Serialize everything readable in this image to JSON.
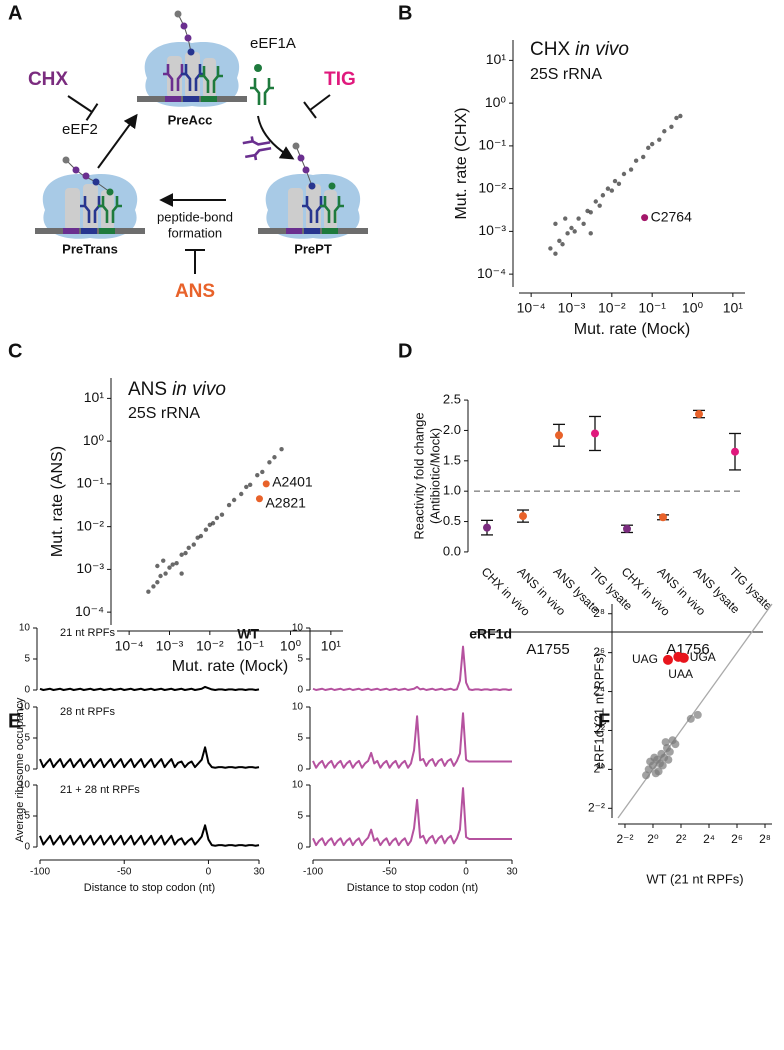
{
  "panel_labels": [
    "A",
    "B",
    "C",
    "D",
    "E",
    "F"
  ],
  "diagram": {
    "inhibitors": [
      "CHX",
      "TIG",
      "ANS"
    ],
    "factors": [
      "eEF1A",
      "eEF2"
    ],
    "states": [
      "PreAcc",
      "PreTrans",
      "PrePT"
    ],
    "step": [
      "peptide-bond",
      "formation"
    ]
  },
  "chart_data": [
    {
      "type": "scatter",
      "title": [
        "CHX",
        "in vivo"
      ],
      "subtitle": "25S rRNA",
      "xlabel": "Mut. rate (Mock)",
      "ylabel": "Mut. rate (CHX)",
      "xscale": "log",
      "yscale": "log",
      "xlim": [
        5e-05,
        20
      ],
      "ylim": [
        5e-05,
        30
      ],
      "xticks": [
        {
          "value": 0.0001,
          "label": "10⁻⁴"
        },
        {
          "value": 0.001,
          "label": "10⁻³"
        },
        {
          "value": 0.01,
          "label": "10⁻²"
        },
        {
          "value": 0.1,
          "label": "10⁻¹"
        },
        {
          "value": 1,
          "label": "10⁰"
        },
        {
          "value": 10,
          "label": "10¹"
        }
      ],
      "yticks": [
        {
          "value": 0.0001,
          "label": "10⁻⁴"
        },
        {
          "value": 0.001,
          "label": "10⁻³"
        },
        {
          "value": 0.01,
          "label": "10⁻²"
        },
        {
          "value": 0.1,
          "label": "10⁻¹"
        },
        {
          "value": 1,
          "label": "10⁰"
        },
        {
          "value": 10,
          "label": "10¹"
        }
      ],
      "series": [
        {
          "color": "#2a2a2a",
          "x": [
            0.0003,
            0.0004,
            0.0005,
            0.0006,
            0.0008,
            0.001,
            0.0012,
            0.0015,
            0.002,
            0.0025,
            0.003,
            0.004,
            0.005,
            0.006,
            0.008,
            0.01,
            0.012,
            0.015,
            0.02,
            0.03,
            0.04,
            0.06,
            0.08,
            0.1,
            0.15,
            0.2,
            0.3,
            0.4,
            0.5,
            0.0007,
            0.003,
            0.0004
          ],
          "y": [
            0.0004,
            0.0003,
            0.0006,
            0.0005,
            0.0009,
            0.0012,
            0.001,
            0.002,
            0.0015,
            0.003,
            0.0028,
            0.005,
            0.004,
            0.007,
            0.01,
            0.009,
            0.015,
            0.013,
            0.022,
            0.028,
            0.045,
            0.055,
            0.09,
            0.11,
            0.14,
            0.22,
            0.28,
            0.45,
            0.5,
            0.002,
            0.0009,
            0.0015
          ]
        },
        {
          "color": "#a3176a",
          "x": [
            0.065
          ],
          "y": [
            0.0021
          ],
          "labels": [
            "C2764"
          ]
        }
      ]
    },
    {
      "type": "scatter",
      "title": [
        "ANS",
        "in vivo"
      ],
      "subtitle": "25S rRNA",
      "xlabel": "Mut. rate (Mock)",
      "ylabel": "Mut. rate (ANS)",
      "xscale": "log",
      "yscale": "log",
      "xlim": [
        5e-05,
        20
      ],
      "ylim": [
        5e-05,
        30
      ],
      "xticks": [
        {
          "value": 0.0001,
          "label": "10⁻⁴"
        },
        {
          "value": 0.001,
          "label": "10⁻³"
        },
        {
          "value": 0.01,
          "label": "10⁻²"
        },
        {
          "value": 0.1,
          "label": "10⁻¹"
        },
        {
          "value": 1,
          "label": "10⁰"
        },
        {
          "value": 10,
          "label": "10¹"
        }
      ],
      "yticks": [
        {
          "value": 0.0001,
          "label": "10⁻⁴"
        },
        {
          "value": 0.001,
          "label": "10⁻³"
        },
        {
          "value": 0.01,
          "label": "10⁻²"
        },
        {
          "value": 0.1,
          "label": "10⁻¹"
        },
        {
          "value": 1,
          "label": "10⁰"
        },
        {
          "value": 10,
          "label": "10¹"
        }
      ],
      "series": [
        {
          "color": "#2a2a2a",
          "x": [
            0.0003,
            0.0004,
            0.0005,
            0.0006,
            0.0008,
            0.001,
            0.0012,
            0.0015,
            0.002,
            0.0025,
            0.003,
            0.004,
            0.005,
            0.006,
            0.008,
            0.01,
            0.012,
            0.015,
            0.02,
            0.03,
            0.04,
            0.06,
            0.08,
            0.1,
            0.15,
            0.2,
            0.3,
            0.4,
            0.6,
            0.0007,
            0.002,
            0.0005
          ],
          "y": [
            0.0003,
            0.0004,
            0.0005,
            0.0007,
            0.0008,
            0.0011,
            0.0013,
            0.0014,
            0.0022,
            0.0024,
            0.0032,
            0.0038,
            0.0055,
            0.006,
            0.0085,
            0.011,
            0.012,
            0.016,
            0.019,
            0.032,
            0.042,
            0.058,
            0.085,
            0.095,
            0.16,
            0.19,
            0.32,
            0.42,
            0.65,
            0.0016,
            0.0008,
            0.0012
          ]
        },
        {
          "color": "#e8622a",
          "x": [
            0.25,
            0.17
          ],
          "y": [
            0.1,
            0.045
          ],
          "labels": [
            "A2401",
            "A2821"
          ]
        }
      ]
    },
    {
      "type": "errorbar",
      "ylabel": [
        "Reactivity fold change",
        "(Antibiotic/Mock)"
      ],
      "ylim": [
        -0.1,
        2.6
      ],
      "yticks": [
        {
          "value": 0,
          "label": "0.0"
        },
        0.5,
        {
          "value": 1,
          "label": "1.0"
        },
        1.5,
        {
          "value": 2,
          "label": "2.0"
        },
        2.5
      ],
      "reference_line": 1,
      "groups": [
        {
          "name": "A1755",
          "categories": [
            "CHX in vivo",
            "ANS in vivo",
            "ANS lysate",
            "TIG lysate"
          ],
          "values": [
            0.4,
            0.59,
            1.92,
            1.95
          ],
          "errors": [
            0.12,
            0.1,
            0.18,
            0.28
          ],
          "colors": [
            "#7b2c7f",
            "#e8622a",
            "#e8622a",
            "#e0197d"
          ]
        },
        {
          "name": "A1756",
          "categories": [
            "CHX in vivo",
            "ANS in vivo",
            "ANS lysate",
            "TIG lysate"
          ],
          "values": [
            0.38,
            0.57,
            2.27,
            1.65
          ],
          "errors": [
            0.06,
            0.04,
            0.06,
            0.3
          ],
          "colors": [
            "#7b2c7f",
            "#e8622a",
            "#e8622a",
            "#e0197d"
          ]
        }
      ]
    },
    {
      "type": "line",
      "ylabel": "Average ribosome occupancy",
      "xlabel": "Distance to stop codon (nt)",
      "x": [
        -100,
        -98,
        -96,
        -94,
        -92,
        -90,
        -88,
        -86,
        -84,
        -82,
        -80,
        -78,
        -76,
        -74,
        -72,
        -70,
        -68,
        -66,
        -64,
        -62,
        -60,
        -58,
        -56,
        -54,
        -52,
        -50,
        -48,
        -46,
        -44,
        -42,
        -40,
        -38,
        -36,
        -34,
        -32,
        -30,
        -28,
        -26,
        -24,
        -22,
        -20,
        -18,
        -16,
        -14,
        -12,
        -10,
        -8,
        -6,
        -4,
        -2,
        0,
        2,
        4,
        6,
        8,
        10,
        12,
        14,
        16,
        18,
        20,
        22,
        24,
        26,
        28,
        30
      ],
      "xlim": [
        -100,
        30
      ],
      "xticks": [
        -100,
        -50,
        0,
        30
      ],
      "ylim": [
        -1,
        11
      ],
      "yticks": [
        0,
        5,
        10
      ],
      "columns": [
        {
          "title": "WT",
          "color": "#000000"
        },
        {
          "title": "eRF1d",
          "color": "#b5529f"
        }
      ],
      "rows": [
        {
          "label": "21 nt RPFs",
          "values": [
            [
              0.2,
              0,
              0.1,
              0.2,
              0,
              0.1,
              0.2,
              0,
              0.1,
              0.2,
              0,
              0.1,
              0.2,
              0,
              0.1,
              0.2,
              0,
              0.1,
              0.2,
              0,
              0.1,
              0.2,
              0,
              0.1,
              0.2,
              0,
              0.1,
              0.2,
              0,
              0.1,
              0.2,
              0,
              0.1,
              0.2,
              0,
              0.1,
              0.2,
              0,
              0.1,
              0.2,
              0,
              0.1,
              0.2,
              0,
              0.1,
              0.2,
              0,
              0.1,
              0.2,
              0.5,
              0.3,
              0.1,
              0,
              0.1,
              0.1,
              0,
              0.1,
              0.1,
              0,
              0.1,
              0.1,
              0,
              0.1,
              0.1,
              0,
              0.1
            ],
            [
              0.2,
              0,
              0.1,
              0.2,
              0,
              0.1,
              0.2,
              0,
              0.1,
              0.2,
              0,
              0.1,
              0.2,
              0,
              0.1,
              0.2,
              0,
              0.1,
              0.2,
              0,
              0.1,
              0.2,
              0,
              0.1,
              0.2,
              0,
              0.1,
              0.2,
              0,
              0.1,
              0.2,
              0,
              0.1,
              0.2,
              0.5,
              0.1,
              0.2,
              0,
              0.1,
              0.2,
              0,
              0.1,
              0.2,
              0,
              0.1,
              0.2,
              0,
              0.1,
              1.5,
              7,
              1.2,
              0.1,
              0,
              0.1,
              0.1,
              0,
              0.1,
              0.1,
              0,
              0.1,
              0.1,
              0,
              0.1,
              0.1,
              0,
              0.1
            ]
          ]
        },
        {
          "label": "28 nt RPFs",
          "values": [
            [
              1.6,
              0.3,
              1,
              1.6,
              0.3,
              1,
              1.6,
              0.3,
              1,
              1.6,
              0.3,
              1,
              1.6,
              0.3,
              1,
              1.6,
              0.3,
              1,
              1.6,
              0.3,
              1,
              1.6,
              0.3,
              1,
              1.6,
              0.3,
              1,
              1.6,
              0.3,
              1,
              1.6,
              0.3,
              1,
              1.6,
              0.3,
              1,
              1.6,
              0.3,
              1,
              1.6,
              0.3,
              1,
              1.2,
              0.3,
              0.9,
              1.2,
              0.3,
              0.9,
              1.5,
              3.5,
              1,
              0.3,
              0.2,
              0.3,
              0.3,
              0.2,
              0.3,
              0.3,
              0.2,
              0.3,
              0.3,
              0.2,
              0.3,
              0.3,
              0.2,
              0.3
            ],
            [
              1.3,
              0.2,
              0.9,
              1.3,
              0.2,
              0.9,
              1.3,
              0.2,
              0.9,
              1.3,
              0.2,
              0.9,
              1.3,
              0.2,
              0.9,
              1.3,
              0.2,
              0.9,
              1.3,
              2.6,
              0.9,
              1.3,
              0.2,
              0.9,
              1.3,
              0.2,
              0.9,
              1.3,
              0.2,
              0.9,
              1.3,
              0.2,
              0.9,
              3,
              8.5,
              1.4,
              1.6,
              0.5,
              1.3,
              1.6,
              0.5,
              1.3,
              1.6,
              0.5,
              1.3,
              1.6,
              0.5,
              1.3,
              2.5,
              9,
              1.5,
              1.2,
              1.2,
              1.2,
              1.2,
              1.2,
              1.2,
              1.2,
              1.2,
              1.2,
              1.2,
              1.2,
              1.2,
              1.2,
              1.2,
              1.2
            ]
          ]
        },
        {
          "label": "21 + 28 nt RPFs",
          "values": [
            [
              1.8,
              0.4,
              1.1,
              1.8,
              0.4,
              1.1,
              1.8,
              0.4,
              1.1,
              1.8,
              0.4,
              1.1,
              1.8,
              0.4,
              1.1,
              1.8,
              0.4,
              1.1,
              1.8,
              0.4,
              1.1,
              1.8,
              0.4,
              1.1,
              1.8,
              0.4,
              1.1,
              1.8,
              0.4,
              1.1,
              1.8,
              0.4,
              1.1,
              1.8,
              0.4,
              1.1,
              1.8,
              0.4,
              1.1,
              1.8,
              0.4,
              1.1,
              1.4,
              0.4,
              1,
              1.4,
              0.4,
              1,
              1.7,
              3.5,
              1.2,
              0.3,
              0.2,
              0.3,
              0.3,
              0.2,
              0.3,
              0.3,
              0.2,
              0.3,
              0.3,
              0.2,
              0.3,
              0.3,
              0.2,
              0.3
            ],
            [
              1.4,
              0.3,
              1,
              1.4,
              0.3,
              1,
              1.4,
              0.3,
              1,
              1.4,
              0.3,
              1,
              1.4,
              0.3,
              1,
              1.4,
              0.3,
              1,
              1.5,
              2.8,
              1,
              1.4,
              0.3,
              1,
              1.4,
              0.3,
              1,
              1.4,
              0.3,
              1,
              1.4,
              0.3,
              1,
              3,
              7.6,
              1.5,
              1.8,
              0.6,
              1.4,
              1.8,
              0.6,
              1.4,
              1.8,
              0.6,
              1.4,
              1.8,
              0.6,
              1.4,
              2.8,
              9.5,
              1.6,
              1.3,
              1.3,
              1.3,
              1.3,
              1.3,
              1.3,
              1.3,
              1.3,
              1.3,
              1.3,
              1.3,
              1.3,
              1.3,
              1.3,
              1.3
            ]
          ]
        }
      ]
    },
    {
      "type": "scatter",
      "xlabel": "WT (21 nt RPFs)",
      "ylabel": "eRF1d (21 nt RPFs)",
      "xscale": "log",
      "yscale": "log",
      "xlim": [
        0.177,
        362
      ],
      "ylim": [
        0.177,
        362
      ],
      "diagonal": true,
      "xticks": [
        {
          "value": 0.25,
          "label": "2⁻²"
        },
        {
          "value": 1,
          "label": "2⁰"
        },
        {
          "value": 4,
          "label": "2²"
        },
        {
          "value": 16,
          "label": "2⁴"
        },
        {
          "value": 64,
          "label": "2⁶"
        },
        {
          "value": 256,
          "label": "2⁸"
        }
      ],
      "yticks": [
        {
          "value": 0.25,
          "label": "2⁻²"
        },
        {
          "value": 1,
          "label": "2⁰"
        },
        {
          "value": 4,
          "label": "2²"
        },
        {
          "value": 16,
          "label": "2⁴"
        },
        {
          "value": 64,
          "label": "2⁶"
        },
        {
          "value": 256,
          "label": "2⁸"
        }
      ],
      "series": [
        {
          "color": "#7a7a7a",
          "x": [
            0.71,
            0.81,
            1,
            1.15,
            1.23,
            1.41,
            1.52,
            1.74,
            2,
            2.3,
            2.64,
            1.07,
            1.32,
            1.62,
            0.87,
            3.03,
            6.5,
            9.19,
            1.87,
            2.14
          ],
          "y": [
            0.81,
            1,
            1.15,
            0.87,
            1.41,
            1.23,
            1.74,
            1.52,
            2.14,
            1.87,
            2.83,
            1.52,
            0.93,
            1.15,
            1.32,
            2.46,
            6.06,
            6.96,
            2.64,
            1.41
          ]
        },
        {
          "color": "#e8141c",
          "x": [
            2.1,
            3.5,
            4.6
          ],
          "y": [
            49.5,
            55,
            53
          ],
          "labels": [
            "UAG",
            "UAA",
            "UGA"
          ]
        }
      ]
    }
  ]
}
